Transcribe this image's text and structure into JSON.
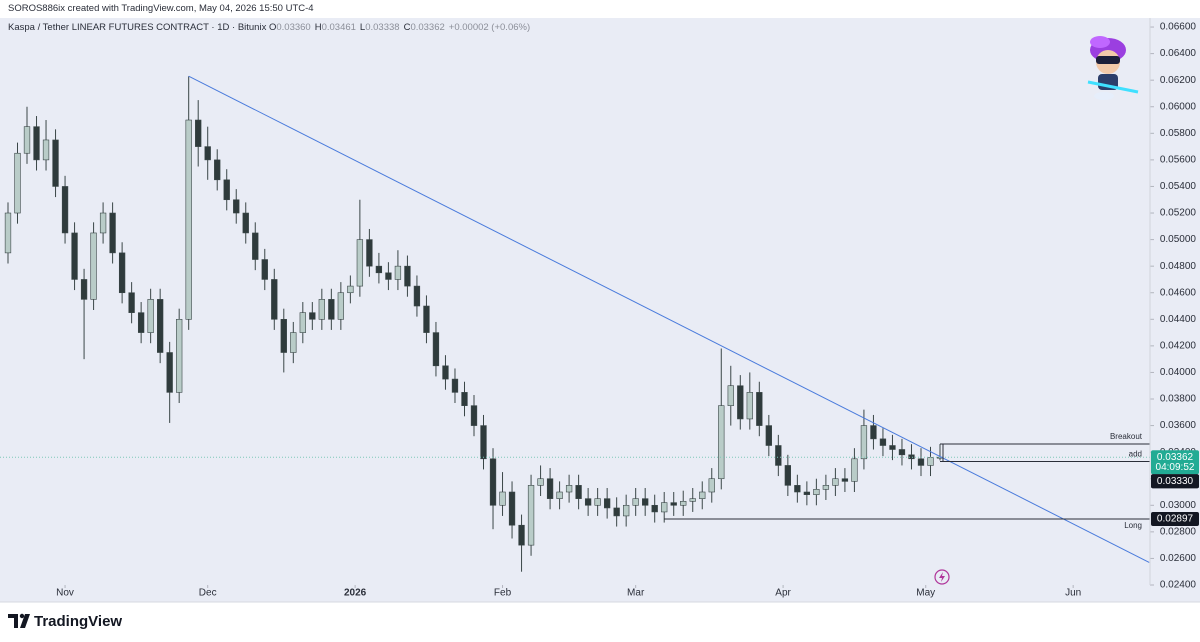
{
  "chart_data": {
    "type": "candlestick",
    "credit": "SOROS886ix created with TradingView.com, May 04, 2026 15:50 UTC-4",
    "title": "Kaspa / Tether LINEAR FUTURES CONTRACT · 1D · Bitunix",
    "ohlc_header": [
      {
        "key": "O",
        "text": "0.03360"
      },
      {
        "key": "H",
        "text": "0.03461"
      },
      {
        "key": "L",
        "text": "0.03338"
      },
      {
        "key": "C",
        "text": "0.03362"
      }
    ],
    "change": "+0.00002 (+0.06%)",
    "countdown": "04:09:52",
    "brand": "TradingView",
    "up_color": "#b9ccc8",
    "down_color": "#2f3b3c",
    "open": [
      0.049,
      0.052,
      0.0565,
      0.0585,
      0.056,
      0.0575,
      0.054,
      0.0505,
      0.047,
      0.0455,
      0.0505,
      0.052,
      0.049,
      0.046,
      0.0445,
      0.043,
      0.0455,
      0.0415,
      0.0385,
      0.044,
      0.059,
      0.057,
      0.056,
      0.0545,
      0.053,
      0.052,
      0.0505,
      0.0485,
      0.047,
      0.044,
      0.0415,
      0.043,
      0.0445,
      0.044,
      0.0455,
      0.044,
      0.046,
      0.0465,
      0.05,
      0.048,
      0.0475,
      0.047,
      0.048,
      0.0465,
      0.045,
      0.043,
      0.0405,
      0.0395,
      0.0385,
      0.0375,
      0.036,
      0.0335,
      0.03,
      0.031,
      0.0285,
      0.027,
      0.0315,
      0.032,
      0.0305,
      0.031,
      0.0315,
      0.0305,
      0.03,
      0.0305,
      0.0298,
      0.0292,
      0.03,
      0.0305,
      0.03,
      0.0295,
      0.0302,
      0.03,
      0.0303,
      0.0305,
      0.031,
      0.032,
      0.0375,
      0.039,
      0.0365,
      0.0385,
      0.036,
      0.0345,
      0.033,
      0.0315,
      0.031,
      0.0308,
      0.0312,
      0.0315,
      0.032,
      0.0318,
      0.0335,
      0.036,
      0.035,
      0.0345,
      0.0342,
      0.0338,
      0.0335,
      0.033,
      0.0336
    ],
    "high": [
      0.0528,
      0.0573,
      0.06,
      0.0593,
      0.059,
      0.0583,
      0.0548,
      0.0513,
      0.0478,
      0.0513,
      0.0528,
      0.0528,
      0.0498,
      0.0468,
      0.0453,
      0.0463,
      0.0463,
      0.0423,
      0.0448,
      0.0623,
      0.0605,
      0.0585,
      0.0568,
      0.0553,
      0.0538,
      0.0528,
      0.0513,
      0.0493,
      0.0478,
      0.0448,
      0.0438,
      0.0453,
      0.0453,
      0.0463,
      0.0463,
      0.0468,
      0.0473,
      0.053,
      0.0508,
      0.049,
      0.0483,
      0.0492,
      0.0488,
      0.0473,
      0.0458,
      0.0438,
      0.0413,
      0.0403,
      0.0393,
      0.0383,
      0.0368,
      0.0343,
      0.0325,
      0.0318,
      0.0293,
      0.0323,
      0.033,
      0.0328,
      0.0318,
      0.0323,
      0.0323,
      0.0313,
      0.0313,
      0.0313,
      0.0306,
      0.0308,
      0.0313,
      0.0313,
      0.0308,
      0.031,
      0.031,
      0.0311,
      0.0313,
      0.0318,
      0.0328,
      0.0418,
      0.0405,
      0.0398,
      0.04,
      0.0393,
      0.0368,
      0.0353,
      0.0338,
      0.0323,
      0.0318,
      0.032,
      0.0323,
      0.0328,
      0.0328,
      0.0343,
      0.0372,
      0.0368,
      0.0358,
      0.0353,
      0.035,
      0.0346,
      0.0343,
      0.0344,
      0.03461
    ],
    "low": [
      0.0482,
      0.0512,
      0.0557,
      0.0552,
      0.0552,
      0.0532,
      0.0497,
      0.0462,
      0.041,
      0.0447,
      0.0497,
      0.0482,
      0.0452,
      0.0437,
      0.0422,
      0.0422,
      0.0407,
      0.0362,
      0.0377,
      0.0432,
      0.0555,
      0.0545,
      0.0537,
      0.0522,
      0.0512,
      0.0497,
      0.0477,
      0.0462,
      0.0432,
      0.04,
      0.0407,
      0.0422,
      0.0432,
      0.0432,
      0.0432,
      0.0432,
      0.0452,
      0.0457,
      0.0472,
      0.0467,
      0.0462,
      0.0462,
      0.0457,
      0.0442,
      0.0422,
      0.0397,
      0.0387,
      0.0377,
      0.0367,
      0.0352,
      0.0327,
      0.0282,
      0.0292,
      0.0275,
      0.025,
      0.0262,
      0.0307,
      0.0297,
      0.0297,
      0.0302,
      0.0297,
      0.0292,
      0.0292,
      0.029,
      0.0284,
      0.0284,
      0.0292,
      0.0292,
      0.0287,
      0.0287,
      0.0292,
      0.0292,
      0.0295,
      0.0297,
      0.0302,
      0.0312,
      0.036,
      0.0357,
      0.0357,
      0.0352,
      0.0337,
      0.0322,
      0.0307,
      0.0302,
      0.03,
      0.03,
      0.0304,
      0.0307,
      0.031,
      0.031,
      0.0327,
      0.0342,
      0.0337,
      0.0334,
      0.033,
      0.0327,
      0.0322,
      0.0322,
      0.03338
    ],
    "close": [
      0.052,
      0.0565,
      0.0585,
      0.056,
      0.0575,
      0.054,
      0.0505,
      0.047,
      0.0455,
      0.0505,
      0.052,
      0.049,
      0.046,
      0.0445,
      0.043,
      0.0455,
      0.0415,
      0.0385,
      0.044,
      0.059,
      0.057,
      0.056,
      0.0545,
      0.053,
      0.052,
      0.0505,
      0.0485,
      0.047,
      0.044,
      0.0415,
      0.043,
      0.0445,
      0.044,
      0.0455,
      0.044,
      0.046,
      0.0465,
      0.05,
      0.048,
      0.0475,
      0.047,
      0.048,
      0.0465,
      0.045,
      0.043,
      0.0405,
      0.0395,
      0.0385,
      0.0375,
      0.036,
      0.0335,
      0.03,
      0.031,
      0.0285,
      0.027,
      0.0315,
      0.032,
      0.0305,
      0.031,
      0.0315,
      0.0305,
      0.03,
      0.0305,
      0.0298,
      0.0292,
      0.03,
      0.0305,
      0.03,
      0.0295,
      0.0302,
      0.03,
      0.0303,
      0.0305,
      0.031,
      0.032,
      0.0375,
      0.039,
      0.0365,
      0.0385,
      0.036,
      0.0345,
      0.033,
      0.0315,
      0.031,
      0.0308,
      0.0312,
      0.0315,
      0.032,
      0.0318,
      0.0335,
      0.036,
      0.035,
      0.0345,
      0.0342,
      0.0338,
      0.0335,
      0.033,
      0.0336,
      0.03362
    ],
    "xlim": [
      -0.84,
      120.08
    ],
    "xticks": [
      {
        "value": 6,
        "label": "Nov"
      },
      {
        "value": 21,
        "label": "Dec"
      },
      {
        "value": 36.5,
        "label": "2026"
      },
      {
        "value": 52,
        "label": "Feb"
      },
      {
        "value": 66,
        "label": "Mar"
      },
      {
        "value": 81.5,
        "label": "Apr"
      },
      {
        "value": 96.5,
        "label": "May"
      },
      {
        "value": 112,
        "label": "Jun"
      }
    ],
    "ylim": [
      0.024,
      0.06668
    ],
    "yticks": [
      {
        "value": 0.024,
        "label": "0.02400"
      },
      {
        "value": 0.026,
        "label": "0.02600"
      },
      {
        "value": 0.028,
        "label": "0.02800"
      },
      {
        "value": 0.03,
        "label": "0.03000"
      },
      {
        "value": 0.032,
        "label": "0.03200"
      },
      {
        "value": 0.034,
        "label": "0.03400"
      },
      {
        "value": 0.036,
        "label": "0.03600"
      },
      {
        "value": 0.038,
        "label": "0.03800"
      },
      {
        "value": 0.04,
        "label": "0.04000"
      },
      {
        "value": 0.042,
        "label": "0.04200"
      },
      {
        "value": 0.044,
        "label": "0.04400"
      },
      {
        "value": 0.046,
        "label": "0.04600"
      },
      {
        "value": 0.048,
        "label": "0.04800"
      },
      {
        "value": 0.05,
        "label": "0.05000"
      },
      {
        "value": 0.052,
        "label": "0.05200"
      },
      {
        "value": 0.054,
        "label": "0.05400"
      },
      {
        "value": 0.056,
        "label": "0.05600"
      },
      {
        "value": 0.058,
        "label": "0.05800"
      },
      {
        "value": 0.06,
        "label": "0.06000"
      },
      {
        "value": 0.062,
        "label": "0.06200"
      },
      {
        "value": 0.064,
        "label": "0.06400"
      },
      {
        "value": 0.066,
        "label": "0.06600"
      }
    ],
    "trendline": {
      "x": [
        19,
        120
      ],
      "y": [
        0.0623,
        0.0257
      ],
      "color": "#4a7bdc"
    },
    "levels": [
      {
        "name": "Breakout",
        "value": {
          "value": 0.03461,
          "label": "0.03461"
        },
        "start": 98
      },
      {
        "name": "add",
        "value": {
          "value": 0.0333,
          "label": "0.03330"
        },
        "start": 98
      },
      {
        "name": "Long",
        "value": {
          "value": 0.02897,
          "label": "0.02897"
        },
        "start": 69
      }
    ]
  }
}
